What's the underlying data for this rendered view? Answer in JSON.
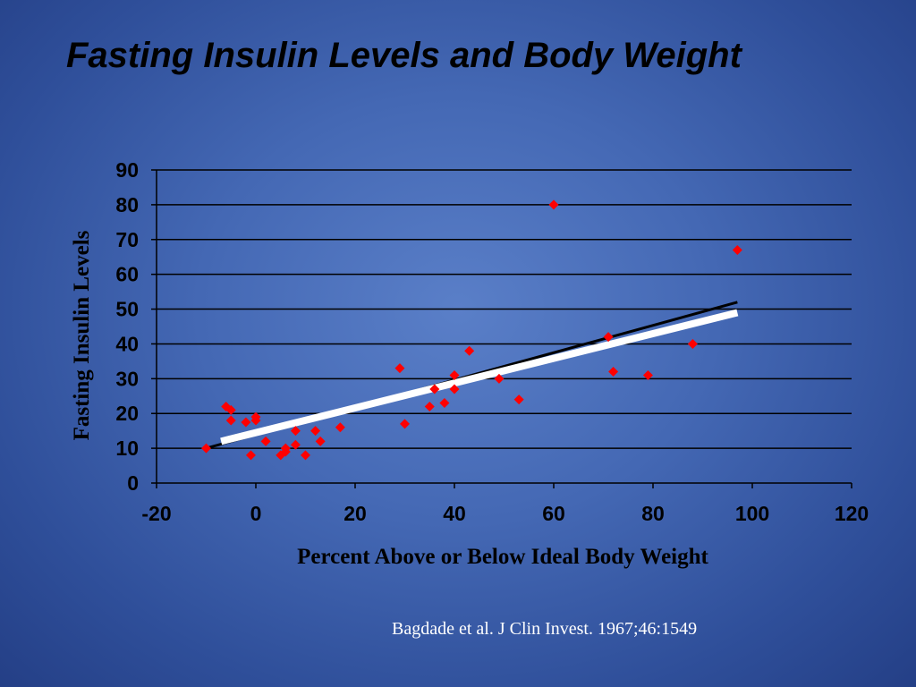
{
  "slide": {
    "title": "Fasting Insulin Levels and Body Weight",
    "source": "Bagdade et al. J Clin Invest. 1967;46:1549"
  },
  "colors": {
    "point": "#ff0000",
    "black_line": "#000000",
    "white_line": "#ffffff",
    "gridline": "#000000"
  },
  "chart_data": {
    "type": "scatter",
    "title": "",
    "xlabel": "Percent Above or Below Ideal Body Weight",
    "ylabel": "Fasting Insulin Levels",
    "xlim": [
      -20,
      120
    ],
    "ylim": [
      0,
      90
    ],
    "xticks": [
      -20,
      0,
      20,
      40,
      60,
      80,
      100,
      120
    ],
    "yticks": [
      0,
      10,
      20,
      30,
      40,
      50,
      60,
      70,
      80,
      90
    ],
    "grid": "horizontal",
    "series": [
      {
        "marker": "diamond",
        "points": [
          [
            -10,
            10
          ],
          [
            -6,
            22
          ],
          [
            -5,
            18
          ],
          [
            -5,
            21
          ],
          [
            -2,
            17.5
          ],
          [
            0,
            18
          ],
          [
            0,
            19
          ],
          [
            -1,
            8
          ],
          [
            2,
            12
          ],
          [
            5,
            8
          ],
          [
            6,
            9
          ],
          [
            6,
            10
          ],
          [
            8,
            11
          ],
          [
            8,
            15
          ],
          [
            10,
            8
          ],
          [
            12,
            15
          ],
          [
            13,
            12
          ],
          [
            17,
            16
          ],
          [
            29,
            33
          ],
          [
            30,
            17
          ],
          [
            35,
            22
          ],
          [
            36,
            27
          ],
          [
            38,
            23
          ],
          [
            40,
            27
          ],
          [
            40,
            31
          ],
          [
            43,
            38
          ],
          [
            49,
            30
          ],
          [
            53,
            24
          ],
          [
            60,
            80
          ],
          [
            71,
            42
          ],
          [
            72,
            32
          ],
          [
            79,
            31
          ],
          [
            88,
            40
          ],
          [
            97,
            67
          ]
        ]
      }
    ],
    "trendlines": [
      {
        "color": "black",
        "from": [
          -10,
          10
        ],
        "to": [
          97,
          52
        ]
      },
      {
        "color": "white",
        "from": [
          -7,
          12
        ],
        "to": [
          97,
          49
        ]
      }
    ]
  }
}
